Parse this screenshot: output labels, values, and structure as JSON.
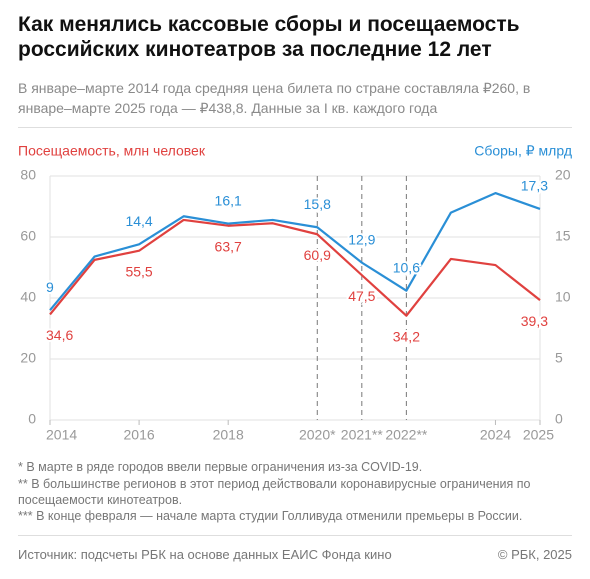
{
  "chart_data": {
    "type": "line",
    "title": "Как менялись кассовые сборы и посещаемость российских кинотеатров за последние 12 лет",
    "subtitle": "В январе–марте 2014 года средняя цена билета по стране составляла ₽260, в январе–марте 2025 года — ₽438,8. Данные за I кв. каждого года",
    "ylabel": "Посещаемость, млн человек",
    "y2label": "Сборы, ₽ млрд",
    "x": [
      2014,
      2015,
      2016,
      2017,
      2018,
      2019,
      2020,
      2021,
      2022,
      2023,
      2024,
      2025
    ],
    "xlim": [
      2014,
      2025
    ],
    "xticks": [
      2014,
      2016,
      2018,
      {
        "value": 2020,
        "label": "2020*"
      },
      {
        "value": 2021,
        "label": "2021**"
      },
      {
        "value": 2022,
        "label": "2022**"
      },
      2024,
      2025
    ],
    "ylim": [
      0,
      80
    ],
    "yticks": [
      0,
      20,
      40,
      60,
      80
    ],
    "y2lim": [
      0,
      20
    ],
    "y2ticks": [
      0,
      5,
      10,
      15,
      20
    ],
    "grid": true,
    "series": [
      {
        "name": "Посещаемость, млн человек",
        "color": "#e0413f",
        "values": [
          34.6,
          52.5,
          55.5,
          65.6,
          63.7,
          64.5,
          60.9,
          47.5,
          34.2,
          52.8,
          50.8,
          39.3
        ],
        "value_labels": [
          "34,6",
          null,
          "55,5",
          null,
          "63,7",
          null,
          "60,9",
          "47,5",
          "34,2",
          null,
          null,
          "39,3"
        ]
      },
      {
        "name": "Сборы, ₽ млрд",
        "color": "#2a8fd6",
        "axis": "y2",
        "values": [
          9,
          13.4,
          14.4,
          16.7,
          16.1,
          16.4,
          15.8,
          12.9,
          10.6,
          17.0,
          18.6,
          17.3
        ],
        "value_labels": [
          "9",
          null,
          "14,4",
          null,
          "16,1",
          null,
          "15,8",
          "12,9",
          "10,6",
          null,
          null,
          "17,3"
        ]
      }
    ],
    "footnotes": [
      "* В марте в ряде городов ввели первые ограничения из-за COVID-19.",
      "** В большинстве регионов в этот период действовали коронавирусные ограничения по посещаемости кинотеатров.",
      "*** В конце февраля — начале марта студии Голливуда отменили премьеры в России."
    ],
    "source": "Источник: подсчеты РБК на основе данных ЕАИС Фонда кино",
    "copyright": "© РБК, 2025"
  }
}
